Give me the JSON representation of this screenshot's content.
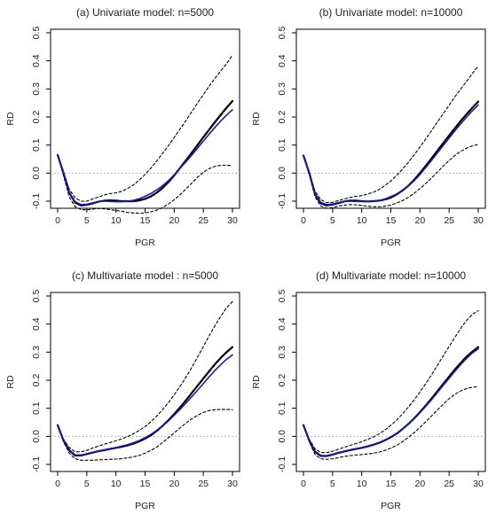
{
  "chart_data": [
    {
      "type": "line",
      "title": "(a) Univariate model: n=5000",
      "xlabel": "PGR",
      "ylabel": "RD",
      "xlim": [
        0,
        30
      ],
      "ylim": [
        -0.1,
        0.5
      ],
      "xticks": [
        0,
        5,
        10,
        15,
        20,
        25,
        30
      ],
      "yticks": [
        -0.1,
        0.0,
        0.1,
        0.2,
        0.3,
        0.4,
        0.5
      ],
      "reference_line_y": 0,
      "x": [
        0,
        1,
        2,
        3,
        4,
        5,
        6,
        7,
        8,
        9,
        10,
        11,
        12,
        13,
        14,
        15,
        16,
        17,
        18,
        19,
        20,
        21,
        22,
        23,
        24,
        25,
        26,
        27,
        28,
        29,
        30
      ],
      "series": [
        {
          "style": "solid",
          "color": "#000000",
          "values": [
            0.065,
            0.0,
            -0.07,
            -0.105,
            -0.115,
            -0.113,
            -0.108,
            -0.102,
            -0.098,
            -0.097,
            -0.098,
            -0.1,
            -0.1,
            -0.1,
            -0.097,
            -0.092,
            -0.083,
            -0.07,
            -0.053,
            -0.032,
            -0.008,
            0.018,
            0.045,
            0.072,
            0.1,
            0.128,
            0.155,
            0.182,
            0.208,
            0.233,
            0.257
          ]
        },
        {
          "style": "solid",
          "color": "#1a1ab8",
          "values": [
            0.065,
            0.0,
            -0.068,
            -0.102,
            -0.112,
            -0.111,
            -0.106,
            -0.101,
            -0.1,
            -0.101,
            -0.102,
            -0.102,
            -0.1,
            -0.097,
            -0.091,
            -0.083,
            -0.073,
            -0.06,
            -0.045,
            -0.027,
            -0.006,
            0.017,
            0.04,
            0.064,
            0.089,
            0.114,
            0.139,
            0.163,
            0.186,
            0.207,
            0.226
          ]
        },
        {
          "style": "dashed",
          "color": "#000000",
          "values": [
            0.065,
            0.005,
            -0.058,
            -0.088,
            -0.1,
            -0.1,
            -0.092,
            -0.085,
            -0.078,
            -0.073,
            -0.07,
            -0.065,
            -0.055,
            -0.042,
            -0.025,
            -0.005,
            0.018,
            0.043,
            0.07,
            0.098,
            0.127,
            0.157,
            0.187,
            0.218,
            0.25,
            0.28,
            0.31,
            0.338,
            0.365,
            0.39,
            0.42
          ]
        },
        {
          "style": "dashed",
          "color": "#000000",
          "values": [
            0.065,
            -0.01,
            -0.085,
            -0.12,
            -0.13,
            -0.131,
            -0.128,
            -0.126,
            -0.127,
            -0.13,
            -0.133,
            -0.136,
            -0.14,
            -0.142,
            -0.143,
            -0.142,
            -0.138,
            -0.132,
            -0.123,
            -0.11,
            -0.095,
            -0.077,
            -0.057,
            -0.036,
            -0.015,
            0.003,
            0.016,
            0.024,
            0.028,
            0.028,
            0.027
          ]
        }
      ]
    },
    {
      "type": "line",
      "title": "(b) Univariate model: n=10000",
      "xlabel": "PGR",
      "ylabel": "RD",
      "xlim": [
        0,
        30
      ],
      "ylim": [
        -0.1,
        0.5
      ],
      "xticks": [
        0,
        5,
        10,
        15,
        20,
        25,
        30
      ],
      "yticks": [
        -0.1,
        0.0,
        0.1,
        0.2,
        0.3,
        0.4,
        0.5
      ],
      "reference_line_y": 0,
      "x": [
        0,
        1,
        2,
        3,
        4,
        5,
        6,
        7,
        8,
        9,
        10,
        11,
        12,
        13,
        14,
        15,
        16,
        17,
        18,
        19,
        20,
        21,
        22,
        23,
        24,
        25,
        26,
        27,
        28,
        29,
        30
      ],
      "series": [
        {
          "style": "solid",
          "color": "#000000",
          "values": [
            0.063,
            0.0,
            -0.075,
            -0.108,
            -0.115,
            -0.112,
            -0.107,
            -0.101,
            -0.098,
            -0.098,
            -0.1,
            -0.101,
            -0.1,
            -0.098,
            -0.094,
            -0.087,
            -0.076,
            -0.062,
            -0.045,
            -0.024,
            0.0,
            0.026,
            0.053,
            0.08,
            0.107,
            0.134,
            0.16,
            0.186,
            0.21,
            0.233,
            0.255
          ]
        },
        {
          "style": "solid",
          "color": "#1a1ab8",
          "values": [
            0.063,
            0.0,
            -0.073,
            -0.105,
            -0.112,
            -0.11,
            -0.105,
            -0.101,
            -0.1,
            -0.101,
            -0.101,
            -0.101,
            -0.1,
            -0.097,
            -0.092,
            -0.084,
            -0.074,
            -0.061,
            -0.046,
            -0.027,
            -0.005,
            0.02,
            0.046,
            0.072,
            0.099,
            0.125,
            0.151,
            0.176,
            0.2,
            0.222,
            0.243
          ]
        },
        {
          "style": "dashed",
          "color": "#000000",
          "values": [
            0.063,
            0.003,
            -0.065,
            -0.095,
            -0.105,
            -0.104,
            -0.098,
            -0.092,
            -0.087,
            -0.083,
            -0.08,
            -0.075,
            -0.068,
            -0.058,
            -0.044,
            -0.028,
            -0.008,
            0.014,
            0.038,
            0.065,
            0.093,
            0.122,
            0.152,
            0.182,
            0.212,
            0.242,
            0.272,
            0.3,
            0.327,
            0.355,
            0.382
          ]
        },
        {
          "style": "dashed",
          "color": "#000000",
          "values": [
            0.063,
            -0.005,
            -0.085,
            -0.118,
            -0.125,
            -0.123,
            -0.118,
            -0.114,
            -0.112,
            -0.113,
            -0.115,
            -0.118,
            -0.12,
            -0.12,
            -0.118,
            -0.114,
            -0.107,
            -0.098,
            -0.086,
            -0.072,
            -0.055,
            -0.037,
            -0.017,
            0.004,
            0.025,
            0.045,
            0.063,
            0.078,
            0.089,
            0.097,
            0.102
          ]
        }
      ]
    },
    {
      "type": "line",
      "title": "(c) Multivariate model : n=5000",
      "xlabel": "PGR",
      "ylabel": "RD",
      "xlim": [
        0,
        30
      ],
      "ylim": [
        -0.1,
        0.5
      ],
      "xticks": [
        0,
        5,
        10,
        15,
        20,
        25,
        30
      ],
      "yticks": [
        -0.1,
        0.0,
        0.1,
        0.2,
        0.3,
        0.4,
        0.5
      ],
      "reference_line_y": 0,
      "x": [
        0,
        1,
        2,
        3,
        4,
        5,
        6,
        7,
        8,
        9,
        10,
        11,
        12,
        13,
        14,
        15,
        16,
        17,
        18,
        19,
        20,
        21,
        22,
        23,
        24,
        25,
        26,
        27,
        28,
        29,
        30
      ],
      "series": [
        {
          "style": "solid",
          "color": "#000000",
          "values": [
            0.04,
            -0.015,
            -0.05,
            -0.068,
            -0.068,
            -0.063,
            -0.058,
            -0.053,
            -0.049,
            -0.045,
            -0.041,
            -0.037,
            -0.032,
            -0.026,
            -0.018,
            -0.008,
            0.004,
            0.019,
            0.037,
            0.057,
            0.079,
            0.103,
            0.128,
            0.154,
            0.18,
            0.206,
            0.232,
            0.257,
            0.28,
            0.3,
            0.318
          ]
        },
        {
          "style": "solid",
          "color": "#1a1ab8",
          "values": [
            0.04,
            -0.013,
            -0.048,
            -0.066,
            -0.067,
            -0.062,
            -0.057,
            -0.052,
            -0.048,
            -0.044,
            -0.04,
            -0.035,
            -0.03,
            -0.023,
            -0.015,
            -0.005,
            0.007,
            0.021,
            0.037,
            0.055,
            0.075,
            0.096,
            0.118,
            0.141,
            0.164,
            0.188,
            0.212,
            0.235,
            0.256,
            0.275,
            0.29
          ]
        },
        {
          "style": "dashed",
          "color": "#000000",
          "values": [
            0.04,
            -0.01,
            -0.04,
            -0.055,
            -0.055,
            -0.05,
            -0.042,
            -0.035,
            -0.028,
            -0.022,
            -0.016,
            -0.009,
            -0.001,
            0.009,
            0.021,
            0.035,
            0.052,
            0.072,
            0.095,
            0.12,
            0.148,
            0.178,
            0.21,
            0.245,
            0.282,
            0.32,
            0.358,
            0.395,
            0.428,
            0.458,
            0.48
          ]
        },
        {
          "style": "dashed",
          "color": "#000000",
          "values": [
            0.04,
            -0.02,
            -0.06,
            -0.08,
            -0.085,
            -0.085,
            -0.085,
            -0.084,
            -0.083,
            -0.082,
            -0.081,
            -0.079,
            -0.077,
            -0.073,
            -0.068,
            -0.06,
            -0.05,
            -0.038,
            -0.022,
            -0.005,
            0.012,
            0.03,
            0.047,
            0.062,
            0.075,
            0.085,
            0.092,
            0.095,
            0.096,
            0.096,
            0.095
          ]
        }
      ]
    },
    {
      "type": "line",
      "title": "(d) Multivariate model: n=10000",
      "xlabel": "PGR",
      "ylabel": "RD",
      "xlim": [
        0,
        30
      ],
      "ylim": [
        -0.1,
        0.5
      ],
      "xticks": [
        0,
        5,
        10,
        15,
        20,
        25,
        30
      ],
      "yticks": [
        -0.1,
        0.0,
        0.1,
        0.2,
        0.3,
        0.4,
        0.5
      ],
      "reference_line_y": 0,
      "x": [
        0,
        1,
        2,
        3,
        4,
        5,
        6,
        7,
        8,
        9,
        10,
        11,
        12,
        13,
        14,
        15,
        16,
        17,
        18,
        19,
        20,
        21,
        22,
        23,
        24,
        25,
        26,
        27,
        28,
        29,
        30
      ],
      "series": [
        {
          "style": "solid",
          "color": "#000000",
          "values": [
            0.04,
            -0.015,
            -0.055,
            -0.07,
            -0.07,
            -0.065,
            -0.059,
            -0.054,
            -0.049,
            -0.045,
            -0.041,
            -0.036,
            -0.03,
            -0.023,
            -0.014,
            -0.003,
            0.01,
            0.026,
            0.044,
            0.064,
            0.086,
            0.11,
            0.135,
            0.161,
            0.187,
            0.213,
            0.238,
            0.262,
            0.284,
            0.302,
            0.318
          ]
        },
        {
          "style": "solid",
          "color": "#1a1ab8",
          "values": [
            0.04,
            -0.014,
            -0.053,
            -0.068,
            -0.069,
            -0.064,
            -0.058,
            -0.053,
            -0.048,
            -0.044,
            -0.04,
            -0.035,
            -0.029,
            -0.022,
            -0.013,
            -0.002,
            0.011,
            0.026,
            0.044,
            0.063,
            0.084,
            0.107,
            0.131,
            0.156,
            0.182,
            0.207,
            0.232,
            0.256,
            0.278,
            0.297,
            0.312
          ]
        },
        {
          "style": "dashed",
          "color": "#000000",
          "values": [
            0.04,
            -0.01,
            -0.045,
            -0.058,
            -0.058,
            -0.053,
            -0.046,
            -0.039,
            -0.032,
            -0.026,
            -0.019,
            -0.011,
            -0.002,
            0.009,
            0.023,
            0.039,
            0.058,
            0.08,
            0.104,
            0.13,
            0.158,
            0.188,
            0.22,
            0.253,
            0.287,
            0.32,
            0.353,
            0.385,
            0.413,
            0.435,
            0.448
          ]
        },
        {
          "style": "dashed",
          "color": "#000000",
          "values": [
            0.04,
            -0.02,
            -0.065,
            -0.08,
            -0.082,
            -0.08,
            -0.076,
            -0.072,
            -0.069,
            -0.067,
            -0.065,
            -0.063,
            -0.06,
            -0.056,
            -0.05,
            -0.042,
            -0.032,
            -0.019,
            -0.004,
            0.013,
            0.032,
            0.052,
            0.073,
            0.094,
            0.115,
            0.134,
            0.15,
            0.162,
            0.17,
            0.175,
            0.177
          ]
        }
      ]
    }
  ]
}
